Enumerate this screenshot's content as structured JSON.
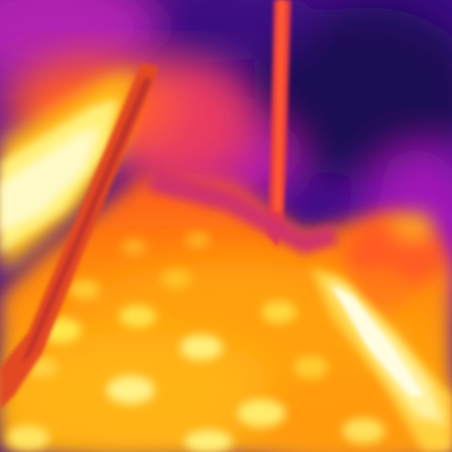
{
  "image": {
    "kind": "thermal-photograph",
    "palette": "ironbow",
    "palette_colors": {
      "coldest": "#1e0a55",
      "cold": "#4a0c90",
      "cool": "#a018b8",
      "warm": "#e0307a",
      "hot": "#ff6a14",
      "hotter": "#ffa008",
      "hottest": "#fff8c8"
    },
    "subjects": [
      "hot-grid-surface",
      "diagonal-hot-pipe",
      "vertical-rod",
      "bright-edge-glow",
      "cold-background"
    ]
  }
}
